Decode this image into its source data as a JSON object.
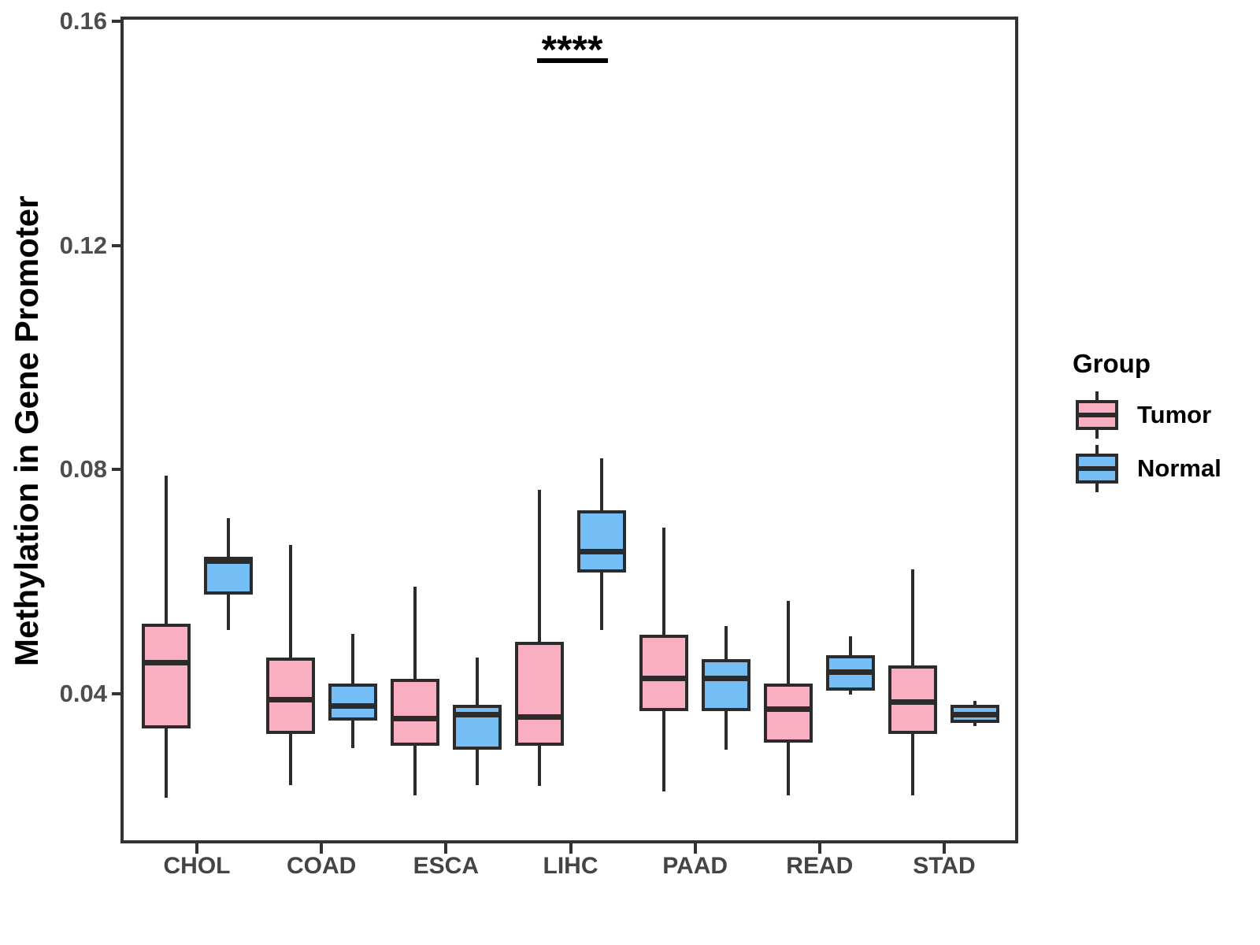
{
  "chart_data": {
    "type": "boxplot",
    "title": "",
    "xlabel": "",
    "ylabel": "Methylation in Gene Promoter",
    "categories": [
      "CHOL",
      "COAD",
      "ESCA",
      "LIHC",
      "PAAD",
      "READ",
      "STAD"
    ],
    "groups": [
      "Tumor",
      "Normal"
    ],
    "colors": {
      "Tumor": "#FAAEC1",
      "Normal": "#74BEF5"
    },
    "stroke_color": "#2b2b2b",
    "ylim": [
      0.0133,
      0.1606
    ],
    "yticks": [
      0.04,
      0.08,
      0.12,
      0.16
    ],
    "ytick_labels": [
      "0.04",
      "0.08",
      "0.12",
      "0.16"
    ],
    "grid": "off",
    "legend_position": "right",
    "series": [
      {
        "name": "Tumor",
        "boxes": [
          {
            "category": "CHOL",
            "low": 0.0215,
            "q1": 0.0338,
            "median": 0.0455,
            "q3": 0.0525,
            "high": 0.0789
          },
          {
            "category": "COAD",
            "low": 0.0237,
            "q1": 0.0328,
            "median": 0.039,
            "q3": 0.0465,
            "high": 0.0666
          },
          {
            "category": "ESCA",
            "low": 0.0219,
            "q1": 0.0307,
            "median": 0.0356,
            "q3": 0.0427,
            "high": 0.0591
          },
          {
            "category": "LIHC",
            "low": 0.0235,
            "q1": 0.0307,
            "median": 0.0359,
            "q3": 0.0493,
            "high": 0.0764
          },
          {
            "category": "PAAD",
            "low": 0.0226,
            "q1": 0.0369,
            "median": 0.0428,
            "q3": 0.0505,
            "high": 0.0696
          },
          {
            "category": "READ",
            "low": 0.0219,
            "q1": 0.0313,
            "median": 0.0373,
            "q3": 0.0418,
            "high": 0.0566
          },
          {
            "category": "STAD",
            "low": 0.0219,
            "q1": 0.0328,
            "median": 0.0385,
            "q3": 0.0451,
            "high": 0.0622
          }
        ]
      },
      {
        "name": "Normal",
        "boxes": [
          {
            "category": "CHOL",
            "low": 0.0514,
            "q1": 0.0577,
            "median": 0.0637,
            "q3": 0.0644,
            "high": 0.0713
          },
          {
            "category": "COAD",
            "low": 0.0303,
            "q1": 0.0352,
            "median": 0.0378,
            "q3": 0.0418,
            "high": 0.0507
          },
          {
            "category": "ESCA",
            "low": 0.0237,
            "q1": 0.03,
            "median": 0.0363,
            "q3": 0.038,
            "high": 0.0465
          },
          {
            "category": "LIHC",
            "low": 0.0514,
            "q1": 0.0616,
            "median": 0.0654,
            "q3": 0.0727,
            "high": 0.082
          },
          {
            "category": "PAAD",
            "low": 0.03,
            "q1": 0.0369,
            "median": 0.0427,
            "q3": 0.0462,
            "high": 0.0521
          },
          {
            "category": "READ",
            "low": 0.0399,
            "q1": 0.0406,
            "median": 0.0439,
            "q3": 0.0469,
            "high": 0.0503
          },
          {
            "category": "STAD",
            "low": 0.0342,
            "q1": 0.0348,
            "median": 0.0363,
            "q3": 0.038,
            "high": 0.0387
          }
        ]
      }
    ],
    "annotation": {
      "text": "****",
      "category": "LIHC",
      "y": 0.1534,
      "between": [
        "Tumor",
        "Normal"
      ]
    }
  },
  "legend": {
    "title": "Group",
    "items": [
      {
        "label": "Tumor",
        "color": "#FAAEC1"
      },
      {
        "label": "Normal",
        "color": "#74BEF5"
      }
    ]
  }
}
